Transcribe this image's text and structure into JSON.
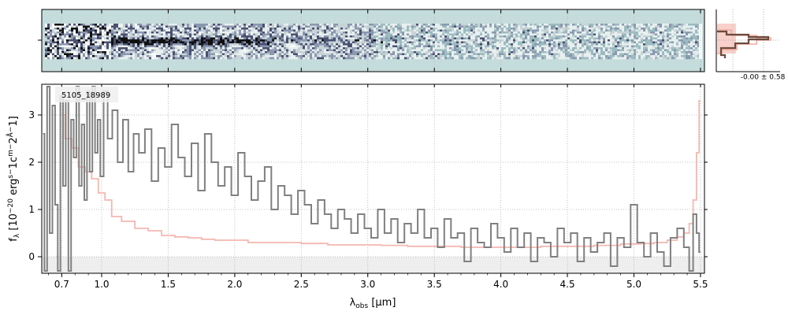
{
  "chart_data": [
    {
      "type": "heatmap",
      "panel": "2d-spectrum",
      "background_color": "#c5dcdc",
      "trace_color": "#3a3f66",
      "description_of_values": "2D spectral image: dark trace concentrated around 0.9-2.6 um in the middle row, noisy columns at the blue end"
    },
    {
      "type": "line",
      "panel": "spatial-profile",
      "profile_color": "#6b4b3e",
      "model_fill_color": "#f4a99e",
      "annotation": "-0.00 ± 0.58"
    },
    {
      "type": "line",
      "panel": "1d-spectrum",
      "object_label": "5105_18989",
      "xlabel": "λobs [μm]",
      "ylabel": "fλ [10−20 ergs−1cm−2Å−1]",
      "xlim": [
        0.55,
        5.53
      ],
      "ylim": [
        -0.35,
        3.65
      ],
      "x_ticks": [
        0.7,
        1.0,
        1.5,
        2.0,
        2.5,
        3.0,
        3.5,
        4.0,
        4.5,
        5.0,
        5.5
      ],
      "x_tick_labels": [
        "0.7",
        "1.0",
        "1.5",
        "2.0",
        "2.5",
        "3.0",
        "3.5",
        "4.0",
        "4.5",
        "5.0",
        "5.5"
      ],
      "y_ticks": [
        0,
        1,
        2,
        3
      ],
      "y_tick_labels": [
        "0",
        "1",
        "2",
        "3"
      ],
      "grid": true,
      "colors": {
        "flux": "#808080",
        "error": "#f4b8b0",
        "zero_band": "#eeeeee"
      },
      "series": [
        {
          "role": "flux",
          "x": [
            0.56,
            0.58,
            0.6,
            0.62,
            0.64,
            0.66,
            0.68,
            0.7,
            0.72,
            0.74,
            0.76,
            0.78,
            0.8,
            0.82,
            0.84,
            0.86,
            0.88,
            0.9,
            0.92,
            0.94,
            0.96,
            0.98,
            1.0,
            1.03,
            1.06,
            1.1,
            1.14,
            1.18,
            1.22,
            1.26,
            1.3,
            1.35,
            1.4,
            1.45,
            1.5,
            1.55,
            1.6,
            1.65,
            1.7,
            1.75,
            1.8,
            1.85,
            1.9,
            1.95,
            2.0,
            2.05,
            2.1,
            2.15,
            2.2,
            2.25,
            2.3,
            2.35,
            2.4,
            2.45,
            2.5,
            2.55,
            2.6,
            2.65,
            2.7,
            2.75,
            2.8,
            2.85,
            2.9,
            2.95,
            3.0,
            3.05,
            3.1,
            3.15,
            3.2,
            3.25,
            3.3,
            3.35,
            3.4,
            3.45,
            3.5,
            3.55,
            3.6,
            3.65,
            3.7,
            3.75,
            3.8,
            3.85,
            3.9,
            3.95,
            4.0,
            4.05,
            4.1,
            4.15,
            4.2,
            4.25,
            4.3,
            4.35,
            4.4,
            4.45,
            4.5,
            4.55,
            4.6,
            4.65,
            4.7,
            4.75,
            4.8,
            4.85,
            4.9,
            4.95,
            5.0,
            5.05,
            5.1,
            5.15,
            5.2,
            5.25,
            5.3,
            5.35,
            5.4,
            5.43,
            5.46,
            5.48,
            5.5
          ],
          "y": [
            2.6,
            -0.3,
            3.6,
            0.5,
            3.2,
            1.1,
            -0.3,
            3.4,
            1.5,
            3.3,
            -0.3,
            2.9,
            2.1,
            3.6,
            1.5,
            2.8,
            1.2,
            3.5,
            1.8,
            3.6,
            2.2,
            2.9,
            1.7,
            3.5,
            2.5,
            3.1,
            2.0,
            2.9,
            1.8,
            2.6,
            2.2,
            2.7,
            1.6,
            2.3,
            1.9,
            2.8,
            2.1,
            1.7,
            2.4,
            1.4,
            2.6,
            2.0,
            1.5,
            1.9,
            1.3,
            2.2,
            1.7,
            1.2,
            1.6,
            1.9,
            1.0,
            1.5,
            1.3,
            0.9,
            1.4,
            1.1,
            0.7,
            1.2,
            0.9,
            0.6,
            1.0,
            0.8,
            0.5,
            0.9,
            0.6,
            0.4,
            1.0,
            0.5,
            0.8,
            0.3,
            0.7,
            0.5,
            1.0,
            0.4,
            0.6,
            0.2,
            0.8,
            0.4,
            0.5,
            -0.1,
            0.6,
            0.3,
            0.2,
            0.7,
            0.4,
            0.1,
            0.6,
            0.2,
            0.5,
            -0.1,
            0.4,
            0.3,
            0.0,
            0.6,
            0.3,
            0.5,
            -0.1,
            0.4,
            0.1,
            0.3,
            0.5,
            -0.2,
            0.4,
            0.2,
            1.1,
            0.3,
            0.0,
            0.5,
            0.1,
            -0.2,
            0.4,
            0.6,
            0.2,
            -0.3,
            0.9,
            0.5,
            0.1
          ]
        },
        {
          "role": "error",
          "x": [
            0.7,
            0.75,
            0.8,
            0.85,
            0.9,
            0.95,
            1.0,
            1.05,
            1.1,
            1.2,
            1.3,
            1.4,
            1.5,
            1.6,
            1.7,
            1.8,
            1.9,
            2.0,
            2.2,
            2.4,
            2.6,
            2.8,
            3.0,
            3.2,
            3.4,
            3.6,
            3.8,
            4.0,
            4.2,
            4.4,
            4.6,
            4.8,
            5.0,
            5.1,
            5.2,
            5.3,
            5.35,
            5.4,
            5.43,
            5.46,
            5.48,
            5.5
          ],
          "y": [
            3.0,
            2.5,
            2.3,
            1.9,
            1.8,
            1.65,
            1.35,
            1.2,
            0.85,
            0.75,
            0.6,
            0.55,
            0.45,
            0.42,
            0.4,
            0.37,
            0.35,
            0.35,
            0.3,
            0.3,
            0.28,
            0.25,
            0.25,
            0.24,
            0.22,
            0.22,
            0.2,
            0.2,
            0.2,
            0.22,
            0.22,
            0.24,
            0.27,
            0.28,
            0.3,
            0.35,
            0.42,
            0.5,
            0.7,
            1.2,
            2.2,
            3.3
          ]
        }
      ]
    }
  ]
}
